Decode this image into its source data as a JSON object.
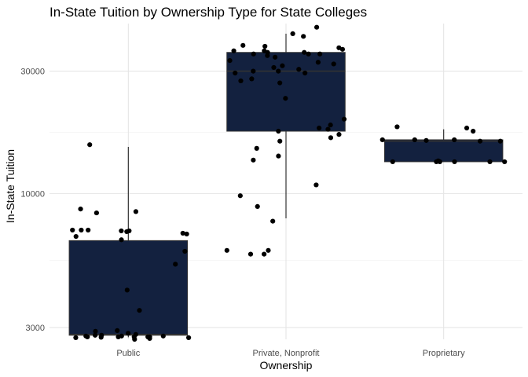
{
  "chart_data": {
    "type": "boxplot",
    "title": "In-State Tuition by Ownership Type for State Colleges",
    "xlabel": "Ownership",
    "ylabel": "In-State Tuition",
    "y_scale": "log10",
    "ylim": [
      2700,
      46000
    ],
    "y_ticks": [
      3000,
      10000,
      30000
    ],
    "y_tick_labels": [
      "3000",
      "10000",
      "30000"
    ],
    "grid": true,
    "box_fill": "#13213f",
    "box_stroke": "#333333",
    "point_color": "#000000",
    "categories": [
      "Public",
      "Private, Nonprofit",
      "Proprietary"
    ],
    "boxes": [
      {
        "category": "Public",
        "min": 2750,
        "q1": 2800,
        "median": 2820,
        "q3": 6550,
        "max": 15200
      },
      {
        "category": "Private, Nonprofit",
        "min": 8000,
        "q1": 17500,
        "median": 30000,
        "q3": 35500,
        "max": 42000
      },
      {
        "category": "Proprietary",
        "min": 13300,
        "q1": 13300,
        "median": 16000,
        "q3": 16200,
        "max": 17800
      }
    ],
    "points": [
      {
        "category": "Public",
        "values": [
          4200,
          8500,
          8700,
          8400,
          7150,
          7150,
          6800,
          5300,
          3500,
          2920,
          2800,
          2780,
          2760,
          2740,
          2850,
          2900,
          2760,
          2780,
          2820,
          7100,
          7200,
          7200,
          7000,
          6950,
          7200,
          6600,
          5950,
          15500,
          2760,
          2700,
          2720,
          2750,
          2760,
          2740,
          2780,
          2800,
          2760
        ]
      },
      {
        "category": "Private, Nonprofit",
        "values": [
          37500,
          37800,
          35000,
          35500,
          34500,
          36000,
          37000,
          35000,
          32000,
          31500,
          30000,
          30500,
          31000,
          32500,
          29500,
          27500,
          28000,
          27000,
          29500,
          33000,
          34000,
          35000,
          35500,
          36500,
          36000,
          30000,
          23500,
          17500,
          17800,
          16000,
          14000,
          15000,
          13500,
          10800,
          9800,
          8900,
          18000,
          18500,
          19500,
          17000,
          16500,
          44500,
          41000,
          42000,
          6000,
          5800,
          6000,
          5800,
          7800
        ]
      },
      {
        "category": "Proprietary",
        "values": [
          18000,
          17500,
          16200,
          16000,
          16200,
          16100,
          16200,
          13300,
          13300,
          13300,
          13400,
          13300,
          13300,
          13300,
          18200,
          16000
        ]
      }
    ]
  }
}
